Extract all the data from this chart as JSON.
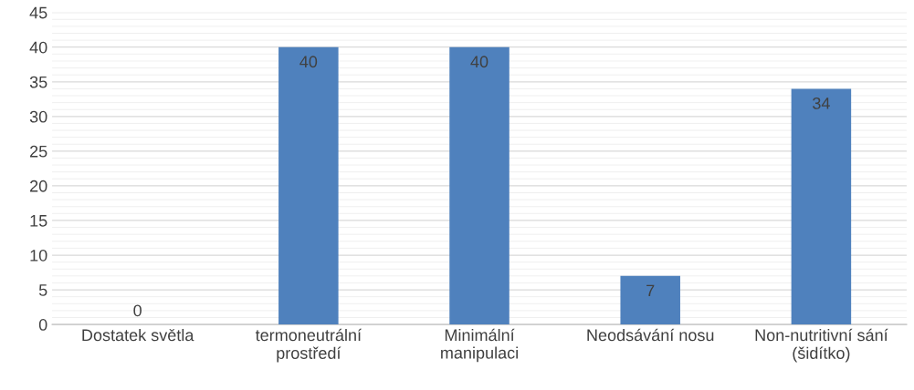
{
  "chart_data": {
    "type": "bar",
    "categories": [
      "Dostatek světla",
      "termoneutrální\nprostředí",
      "Minimální\nmanipulaci",
      "Neodsávání nosu",
      "Non-nutritivní sání\n(šidítko)"
    ],
    "values": [
      0,
      40,
      40,
      7,
      34
    ],
    "color": "#4f81bd",
    "data_labels": true,
    "grid": "y",
    "ylim": [
      0,
      45
    ],
    "yticks": [
      0,
      {
        "value": 1,
        "label": null
      },
      {
        "value": 2,
        "label": null
      },
      {
        "value": 3,
        "label": null
      },
      {
        "value": 4,
        "label": null
      },
      5,
      {
        "value": 6,
        "label": null
      },
      {
        "value": 7,
        "label": null
      },
      {
        "value": 8,
        "label": null
      },
      {
        "value": 9,
        "label": null
      },
      10,
      {
        "value": 11,
        "label": null
      },
      {
        "value": 12,
        "label": null
      },
      {
        "value": 13,
        "label": null
      },
      {
        "value": 14,
        "label": null
      },
      15,
      {
        "value": 16,
        "label": null
      },
      {
        "value": 17,
        "label": null
      },
      {
        "value": 18,
        "label": null
      },
      {
        "value": 19,
        "label": null
      },
      20,
      {
        "value": 21,
        "label": null
      },
      {
        "value": 22,
        "label": null
      },
      {
        "value": 23,
        "label": null
      },
      {
        "value": 24,
        "label": null
      },
      25,
      {
        "value": 26,
        "label": null
      },
      {
        "value": 27,
        "label": null
      },
      {
        "value": 28,
        "label": null
      },
      {
        "value": 29,
        "label": null
      },
      30,
      {
        "value": 31,
        "label": null
      },
      {
        "value": 32,
        "label": null
      },
      {
        "value": 33,
        "label": null
      },
      {
        "value": 34,
        "label": null
      },
      35,
      {
        "value": 36,
        "label": null
      },
      {
        "value": 37,
        "label": null
      },
      {
        "value": 38,
        "label": null
      },
      {
        "value": 39,
        "label": null
      },
      40,
      {
        "value": 41,
        "label": null
      },
      {
        "value": 42,
        "label": null
      },
      {
        "value": 43,
        "label": null
      },
      {
        "value": 44,
        "label": null
      },
      45
    ]
  }
}
